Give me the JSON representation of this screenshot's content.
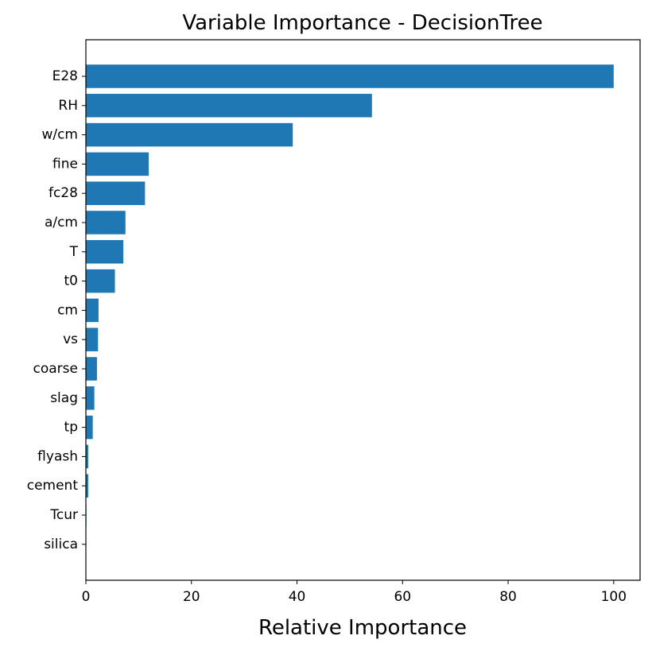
{
  "chart_data": {
    "type": "bar",
    "orientation": "horizontal",
    "title": "Variable Importance - DecisionTree",
    "xlabel": "Relative Importance",
    "ylabel": "",
    "xlim": [
      0,
      105
    ],
    "xticks": [
      0,
      20,
      40,
      60,
      80,
      100
    ],
    "categories": [
      "E28",
      "RH",
      "w/cm",
      "fine",
      "fc28",
      "a/cm",
      "T",
      "t0",
      "cm",
      "vs",
      "coarse",
      "slag",
      "tp",
      "flyash",
      "cement",
      "Tcur",
      "silica"
    ],
    "values": [
      100,
      54.2,
      39.2,
      11.9,
      11.2,
      7.5,
      7.1,
      5.5,
      2.4,
      2.3,
      2.1,
      1.6,
      1.3,
      0.45,
      0.45,
      0.1,
      0.05
    ],
    "bar_color": "#1f77b4",
    "grid": false,
    "legend": "none"
  }
}
